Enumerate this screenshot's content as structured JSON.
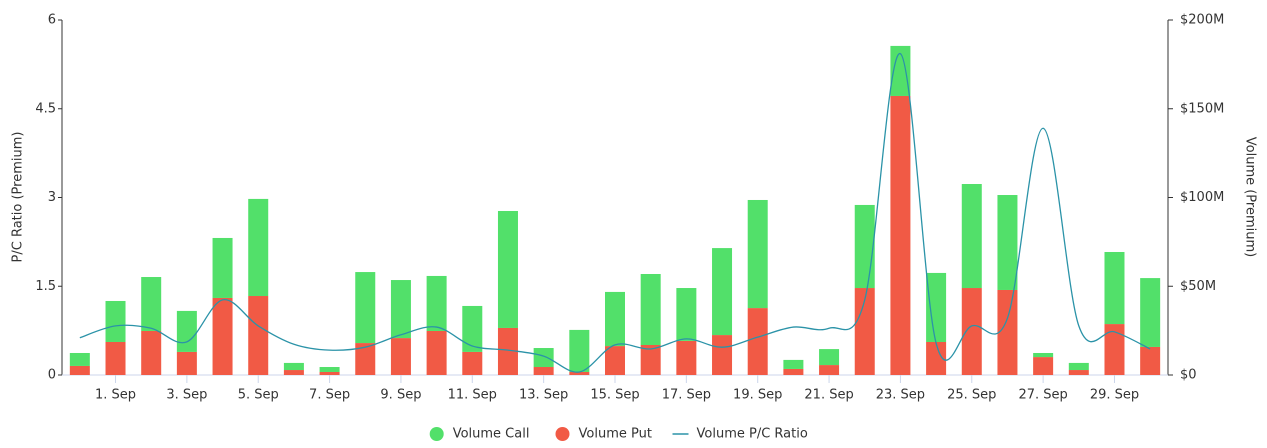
{
  "chart_data": {
    "type": "bar-line",
    "y_label": "P/C Ratio (Premium)",
    "y2_label": "Volume (Premium)",
    "categories": [
      null,
      "1. Sep",
      null,
      "3. Sep",
      null,
      "5. Sep",
      null,
      "7. Sep",
      null,
      "9. Sep",
      null,
      "11. Sep",
      null,
      "13. Sep",
      null,
      "15. Sep",
      null,
      "17. Sep",
      null,
      "19. Sep",
      null,
      "21. Sep",
      null,
      "23. Sep",
      null,
      "25. Sep",
      null,
      "27. Sep",
      null,
      "29. Sep",
      null
    ],
    "ylim": [
      0,
      6
    ],
    "yticks": [
      0,
      1.5,
      3,
      4.5,
      6
    ],
    "y2lim": [
      0,
      200
    ],
    "y2ticks": [
      {
        "value": 0,
        "label": "$0"
      },
      {
        "value": 50,
        "label": "$50M"
      },
      {
        "value": 100,
        "label": "$100M"
      },
      {
        "value": 150,
        "label": "$150M"
      },
      {
        "value": 200,
        "label": "$200M"
      }
    ],
    "grid": false,
    "series": [
      {
        "name": "Volume Call",
        "type": "bar",
        "axis": "y2",
        "color": "#52e06a",
        "values": [
          7.3,
          23.1,
          30.4,
          23.1,
          33.8,
          54.7,
          4,
          2.8,
          40,
          32.7,
          31,
          25.9,
          65.9,
          10.7,
          23.7,
          30.5,
          40,
          29.8,
          49,
          60.9,
          5.1,
          9,
          46.8,
          28.2,
          38.9,
          58.6,
          53.5,
          2.3,
          4,
          40.6,
          38.8
        ]
      },
      {
        "name": "Volume Put",
        "type": "bar",
        "axis": "y2",
        "color": "#f15a45",
        "values": [
          5.1,
          18.6,
          24.8,
          13,
          43.4,
          44.5,
          2.8,
          1.7,
          18,
          20.8,
          24.8,
          13,
          26.5,
          4.5,
          1.7,
          16.3,
          16.9,
          19.2,
          22.5,
          37.7,
          3.4,
          5.6,
          49,
          157.2,
          18.6,
          49,
          47.9,
          10.1,
          2.8,
          28.7,
          15.8
        ]
      },
      {
        "name": "Volume P/C Ratio",
        "type": "line",
        "axis": "y",
        "color": "#2b93a8",
        "values": [
          0.63,
          0.83,
          0.79,
          0.56,
          1.27,
          0.83,
          0.52,
          0.42,
          0.47,
          0.68,
          0.81,
          0.49,
          0.42,
          0.32,
          0.05,
          0.51,
          0.44,
          0.61,
          0.47,
          0.64,
          0.81,
          0.79,
          1.27,
          5.43,
          0.54,
          0.83,
          0.96,
          4.17,
          0.83,
          0.73,
          0.44
        ]
      }
    ]
  }
}
